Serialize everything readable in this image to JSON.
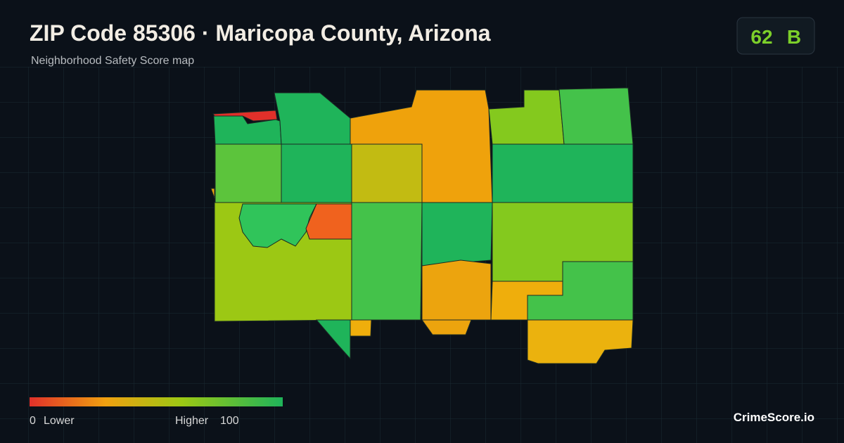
{
  "header": {
    "title": "ZIP Code 85306 · Maricopa County, Arizona",
    "subtitle": "Neighborhood Safety Score map"
  },
  "badge": {
    "score": 62,
    "grade": "B"
  },
  "legend": {
    "min": 0,
    "min_label": "Lower",
    "max_label": "Higher",
    "max": 100
  },
  "footer": {
    "brand": "CrimeScore.io"
  }
}
